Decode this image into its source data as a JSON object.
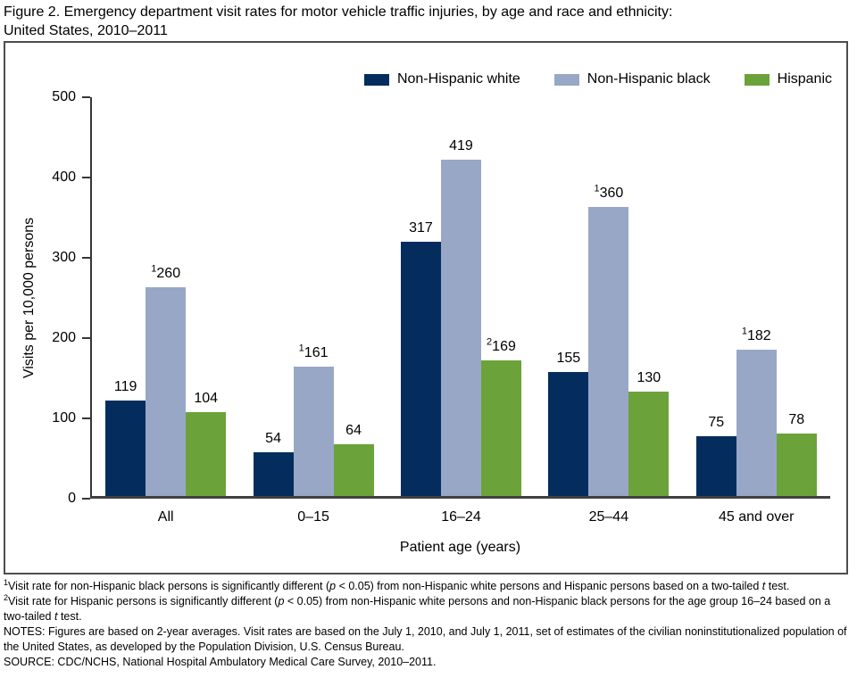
{
  "figure": {
    "title_line1": "Figure 2. Emergency department visit rates for motor vehicle traffic injuries, by age and race and ethnicity:",
    "title_line2": "United States, 2010–2011"
  },
  "chart_data": {
    "type": "bar",
    "title": "Figure 2. Emergency department visit rates for motor vehicle traffic injuries, by age and race and ethnicity: United States, 2010–2011",
    "xlabel": "Patient age (years)",
    "ylabel": "Visits per 10,000 persons",
    "ylim": [
      0,
      500
    ],
    "yticks": [
      0,
      100,
      200,
      300,
      400,
      500
    ],
    "grid": false,
    "legend_position": "top-right",
    "categories": [
      "All",
      "0–15",
      "16–24",
      "25–44",
      "45 and over"
    ],
    "series": [
      {
        "name": "Non-Hispanic white",
        "color": "#042d5e",
        "values": [
          119,
          54,
          317,
          155,
          75
        ],
        "label_sups": [
          "",
          "",
          "",
          "",
          ""
        ]
      },
      {
        "name": "Non-Hispanic black",
        "color": "#99a7c7",
        "values": [
          260,
          161,
          419,
          360,
          182
        ],
        "label_sups": [
          "1",
          "1",
          "",
          "1",
          "1"
        ]
      },
      {
        "name": "Hispanic",
        "color": "#6ca23a",
        "values": [
          104,
          64,
          169,
          130,
          78
        ],
        "label_sups": [
          "",
          "",
          "2",
          "",
          ""
        ]
      }
    ]
  },
  "footnotes": [
    [
      {
        "t": "1",
        "style": "sup"
      },
      {
        "t": "Visit rate for non-Hispanic black persons is significantly different (",
        "style": "normal"
      },
      {
        "t": "p",
        "style": "italic"
      },
      {
        "t": " < 0.05) from non-Hispanic white persons and Hispanic persons based on a two-tailed ",
        "style": "normal"
      },
      {
        "t": "t",
        "style": "italic"
      },
      {
        "t": " test.",
        "style": "normal"
      }
    ],
    [
      {
        "t": "2",
        "style": "sup"
      },
      {
        "t": "Visit rate for Hispanic persons is significantly different (",
        "style": "normal"
      },
      {
        "t": "p",
        "style": "italic"
      },
      {
        "t": " < 0.05) from non-Hispanic white persons and non-Hispanic black persons for the age group 16–24 based on a two-tailed ",
        "style": "normal"
      },
      {
        "t": "t",
        "style": "italic"
      },
      {
        "t": " test.",
        "style": "normal"
      }
    ],
    [
      {
        "t": "NOTES: Figures are based on 2-year averages. Visit rates are based on the July 1, 2010, and July 1, 2011, set of estimates of the civilian noninstitutionalized population of the United States, as developed by the Population Division, U.S. Census Bureau.",
        "style": "normal"
      }
    ],
    [
      {
        "t": "SOURCE: CDC/NCHS, National Hospital Ambulatory Medical Care Survey, 2010–2011.",
        "style": "normal"
      }
    ]
  ]
}
